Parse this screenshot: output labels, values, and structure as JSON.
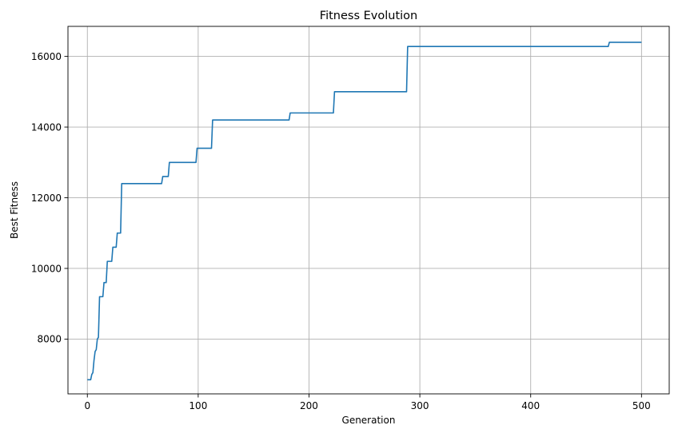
{
  "chart_data": {
    "type": "line",
    "title": "Fitness Evolution",
    "xlabel": "Generation",
    "ylabel": "Best Fitness",
    "xlim": [
      -17.5,
      525
    ],
    "ylim": [
      6450,
      16850
    ],
    "xticks": [
      0,
      100,
      200,
      300,
      400,
      500
    ],
    "yticks": [
      8000,
      10000,
      12000,
      14000,
      16000
    ],
    "grid": true,
    "color": "#1f77b4",
    "series": [
      {
        "x": [
          0,
          3,
          4,
          5,
          6,
          7,
          8,
          9,
          10,
          11,
          14,
          15,
          17,
          18,
          22,
          23,
          26,
          27,
          30,
          31,
          67,
          68,
          73,
          74,
          98,
          99,
          112,
          113,
          182,
          183,
          222,
          223,
          288,
          289,
          470,
          471,
          500
        ],
        "y": [
          6850,
          6850,
          7000,
          7050,
          7400,
          7650,
          7700,
          8000,
          8050,
          9200,
          9200,
          9600,
          9600,
          10200,
          10200,
          10600,
          10600,
          11000,
          11000,
          12400,
          12400,
          12600,
          12600,
          13000,
          13000,
          13400,
          13400,
          14200,
          14200,
          14400,
          14400,
          15000,
          15000,
          16280,
          16280,
          16400,
          16400
        ]
      }
    ]
  }
}
